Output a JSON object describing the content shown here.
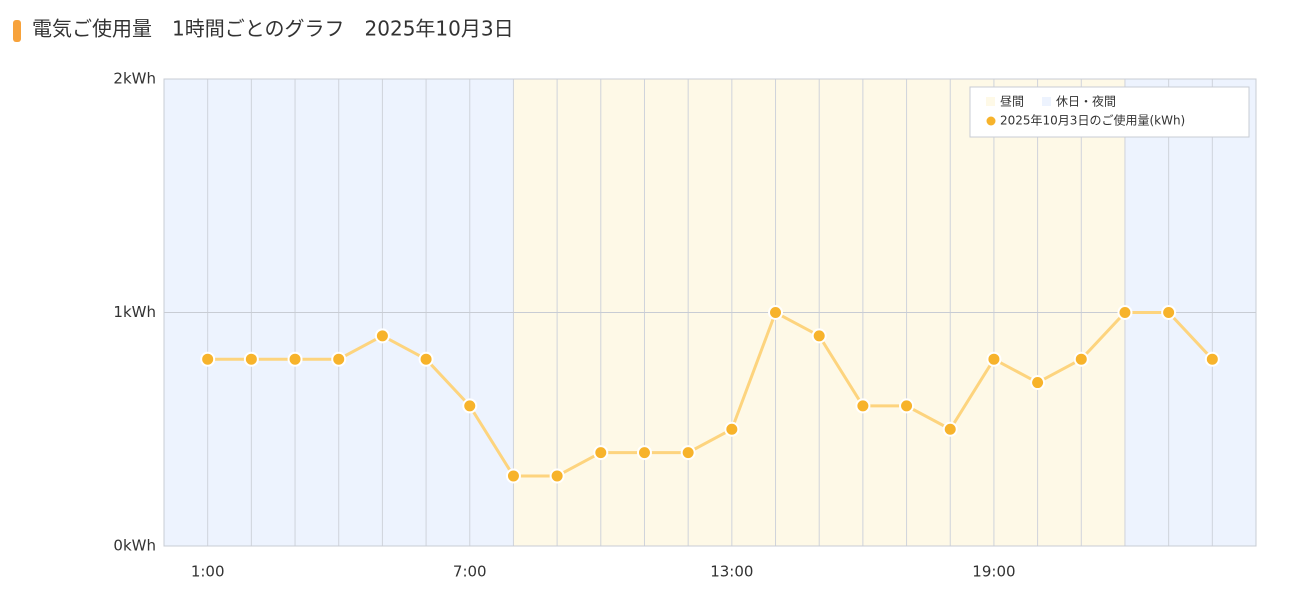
{
  "chart_data": {
    "type": "line",
    "title": "電気ご使用量　1時間ごとのグラフ　2025年10月3日",
    "x": [
      1,
      2,
      3,
      4,
      5,
      6,
      7,
      8,
      9,
      10,
      11,
      12,
      13,
      14,
      15,
      16,
      17,
      18,
      19,
      20,
      21,
      22,
      23,
      24
    ],
    "series": [
      {
        "name": "2025年10月3日のご使用量(kWh)",
        "color": "#f7b32b",
        "line_color": "#fdd47e",
        "values": [
          0.8,
          0.8,
          0.8,
          0.8,
          0.9,
          0.8,
          0.6,
          0.3,
          0.3,
          0.4,
          0.4,
          0.4,
          0.5,
          1.0,
          0.9,
          0.6,
          0.6,
          0.5,
          0.8,
          0.7,
          0.8,
          1.0,
          1.0,
          0.8
        ]
      }
    ],
    "area_legend": [
      {
        "name": "昼間",
        "color": "#fef9e7"
      },
      {
        "name": "休日・夜間",
        "color": "#edf3fe"
      }
    ],
    "areas": [
      {
        "from": 0,
        "to": 8,
        "color": "#edf3fe"
      },
      {
        "from": 8,
        "to": 22,
        "color": "#fef9e7"
      },
      {
        "from": 22,
        "to": 25,
        "color": "#edf3fe"
      }
    ],
    "xlim": [
      0,
      25
    ],
    "xticks": [
      {
        "value": 1,
        "label": "1:00"
      },
      {
        "value": 7,
        "label": "7:00"
      },
      {
        "value": 13,
        "label": "13:00"
      },
      {
        "value": 19,
        "label": "19:00"
      }
    ],
    "ylim": [
      0,
      2
    ],
    "yticks": [
      {
        "value": 0,
        "label": "0kWh"
      },
      {
        "value": 1,
        "label": "1kWh"
      },
      {
        "value": 2,
        "label": "2kWh"
      }
    ],
    "grid": true
  }
}
